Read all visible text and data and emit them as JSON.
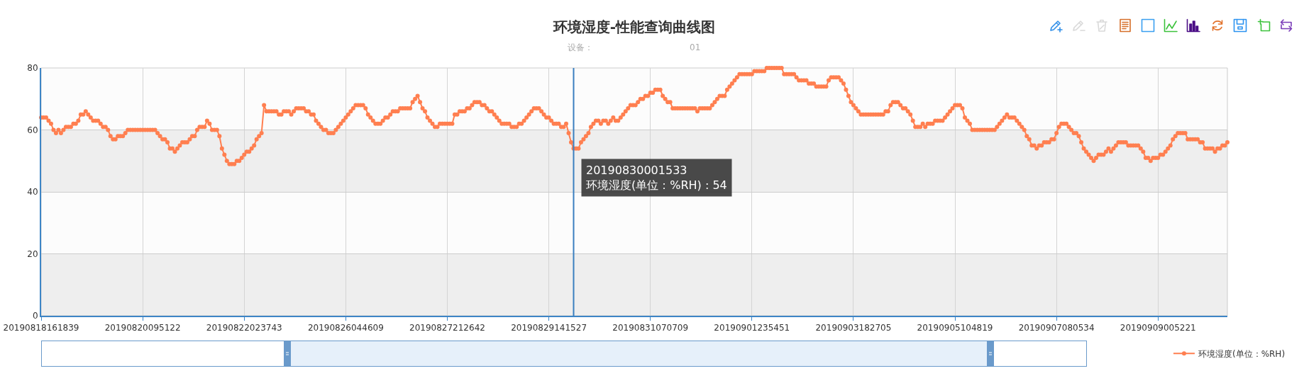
{
  "chart_data": {
    "type": "line",
    "title": "环境湿度-性能查询曲线图",
    "subtitle": "设备：",
    "categories": [
      "20190818161839",
      null,
      null,
      null,
      null,
      null,
      null,
      null,
      null,
      null,
      null,
      null,
      null,
      null,
      null,
      null,
      null,
      null,
      null,
      null,
      null,
      null,
      null,
      null,
      null,
      null,
      null,
      null,
      null,
      null,
      null,
      null,
      null,
      null,
      null,
      null,
      null,
      null,
      null,
      null,
      null,
      "20190820095122",
      null,
      null,
      null,
      null,
      null,
      null,
      null,
      null,
      null,
      null,
      null,
      null,
      null,
      null,
      null,
      null,
      null,
      null,
      null,
      null,
      null,
      null,
      null,
      null,
      null,
      null,
      null,
      null,
      null,
      null,
      null,
      null,
      null,
      null,
      null,
      null,
      null,
      null,
      null,
      null,
      "20190822023743",
      null,
      null,
      null,
      null,
      null,
      null,
      null,
      null,
      null,
      null,
      null,
      null,
      null,
      null,
      null,
      null,
      null,
      null,
      null,
      null,
      null,
      null,
      null,
      null,
      null,
      null,
      null,
      null,
      null,
      null,
      null,
      null,
      null,
      null,
      null,
      null,
      null,
      null,
      null,
      null,
      "20190826044609",
      null,
      null,
      null,
      null,
      null,
      null,
      null,
      null,
      null,
      null,
      null,
      null,
      null,
      null,
      null,
      null,
      null,
      null,
      null,
      null,
      null,
      null,
      null,
      null,
      null,
      null,
      null,
      null,
      null,
      null,
      null,
      null,
      null,
      null,
      null,
      null,
      null,
      null,
      null,
      null,
      "20190827212642",
      null,
      null,
      null,
      null,
      null,
      null,
      null,
      null,
      null,
      null,
      null,
      null,
      null,
      null,
      null,
      null,
      null,
      null,
      null,
      null,
      null,
      null,
      null,
      null,
      null,
      null,
      null,
      null,
      null,
      null,
      null,
      null,
      null,
      null,
      null,
      null,
      null,
      null,
      null,
      null,
      "20190829141527",
      null,
      null,
      null,
      null,
      null,
      null,
      null,
      null,
      null,
      null,
      null,
      null,
      null,
      null,
      null,
      null,
      null,
      null,
      null,
      null,
      null,
      null,
      null,
      null,
      null,
      null,
      null,
      null,
      null,
      null,
      null,
      null,
      null,
      null,
      null,
      null,
      null,
      null,
      null,
      null,
      "20190831070709",
      null,
      null,
      null,
      null,
      null,
      null,
      null,
      null,
      null,
      null,
      null,
      null,
      null,
      null,
      null,
      null,
      null,
      null,
      null,
      null,
      null,
      null,
      null,
      null,
      null,
      null,
      null,
      null,
      null,
      null,
      null,
      null,
      null,
      null,
      null,
      null,
      null,
      null,
      null,
      null,
      "20190901235451",
      null,
      null,
      null,
      null,
      null,
      null,
      null,
      null,
      null,
      null,
      null,
      null,
      null,
      null,
      null,
      null,
      null,
      null,
      null,
      null,
      null,
      null,
      null,
      null,
      null,
      null,
      null,
      null,
      null,
      null,
      null,
      null,
      null,
      null,
      null,
      null,
      null,
      null,
      null,
      null,
      "20190903182705",
      null,
      null,
      null,
      null,
      null,
      null,
      null,
      null,
      null,
      null,
      null,
      null,
      null,
      null,
      null,
      null,
      null,
      null,
      null,
      null,
      null,
      null,
      null,
      null,
      null,
      null,
      null,
      null,
      null,
      null,
      null,
      null,
      null,
      null,
      null,
      null,
      null,
      null,
      null,
      null,
      "20190905104819",
      null,
      null,
      null,
      null,
      null,
      null,
      null,
      null,
      null,
      null,
      null,
      null,
      null,
      null,
      null,
      null,
      null,
      null,
      null,
      null,
      null,
      null,
      null,
      null,
      null,
      null,
      null,
      null,
      null,
      null,
      null,
      null,
      null,
      null,
      null,
      null,
      null,
      null,
      null,
      null,
      "20190907080534",
      null,
      null,
      null,
      null,
      null,
      null,
      null,
      null,
      null,
      null,
      null,
      null,
      null,
      null,
      null,
      null,
      null,
      null,
      null,
      null,
      null,
      null,
      null,
      null,
      null,
      null,
      null,
      null,
      null,
      null,
      null,
      null,
      null,
      null,
      null,
      null,
      null,
      null,
      null,
      null,
      "20190909005221",
      null,
      null,
      null,
      null,
      null,
      null,
      null,
      null,
      null,
      null,
      null,
      null,
      null,
      null,
      null,
      null,
      null,
      null,
      null,
      null,
      null,
      null,
      null,
      null,
      null,
      null,
      null,
      null
    ],
    "series": [
      {
        "name": "环境湿度(单位：%RH)",
        "color": "#ff7f50",
        "values": [
          64,
          64,
          64,
          63,
          62,
          60,
          59,
          60,
          59,
          60,
          61,
          61,
          61,
          62,
          62,
          63,
          65,
          65,
          66,
          65,
          64,
          63,
          63,
          63,
          62,
          61,
          61,
          60,
          58,
          57,
          57,
          58,
          58,
          58,
          59,
          60,
          60,
          60,
          60,
          60,
          60,
          60,
          60,
          60,
          60,
          60,
          60,
          59,
          58,
          57,
          57,
          56,
          54,
          54,
          53,
          54,
          55,
          56,
          56,
          56,
          57,
          58,
          58,
          60,
          61,
          61,
          61,
          63,
          62,
          60,
          60,
          60,
          58,
          54,
          52,
          50,
          49,
          49,
          49,
          50,
          50,
          51,
          52,
          53,
          53,
          54,
          55,
          57,
          58,
          59,
          68,
          66,
          66,
          66,
          66,
          66,
          65,
          65,
          66,
          66,
          66,
          65,
          66,
          67,
          67,
          67,
          67,
          66,
          66,
          65,
          65,
          63,
          62,
          61,
          60,
          60,
          59,
          59,
          59,
          60,
          61,
          62,
          63,
          64,
          65,
          66,
          67,
          68,
          68,
          68,
          68,
          67,
          65,
          64,
          63,
          62,
          62,
          62,
          63,
          64,
          64,
          65,
          66,
          66,
          66,
          67,
          67,
          67,
          67,
          67,
          69,
          70,
          71,
          69,
          67,
          66,
          64,
          63,
          62,
          61,
          61,
          62,
          62,
          62,
          62,
          62,
          62,
          65,
          65,
          66,
          66,
          66,
          67,
          67,
          68,
          69,
          69,
          69,
          68,
          68,
          67,
          66,
          66,
          65,
          64,
          63,
          62,
          62,
          62,
          62,
          61,
          61,
          61,
          62,
          62,
          63,
          64,
          65,
          66,
          67,
          67,
          67,
          66,
          65,
          64,
          64,
          63,
          62,
          62,
          62,
          61,
          61,
          62,
          59,
          56,
          54,
          54,
          54,
          56,
          57,
          58,
          59,
          61,
          62,
          63,
          63,
          62,
          63,
          63,
          62,
          63,
          64,
          63,
          63,
          64,
          65,
          66,
          67,
          68,
          68,
          68,
          69,
          70,
          70,
          71,
          71,
          72,
          72,
          73,
          73,
          73,
          71,
          70,
          69,
          69,
          67,
          67,
          67,
          67,
          67,
          67,
          67,
          67,
          67,
          67,
          66,
          67,
          67,
          67,
          67,
          67,
          68,
          69,
          70,
          71,
          71,
          71,
          73,
          74,
          75,
          76,
          77,
          78,
          78,
          78,
          78,
          78,
          78,
          79,
          79,
          79,
          79,
          79,
          80,
          80,
          80,
          80,
          80,
          80,
          80,
          78,
          78,
          78,
          78,
          78,
          77,
          76,
          76,
          76,
          76,
          75,
          75,
          75,
          74,
          74,
          74,
          74,
          74,
          76,
          77,
          77,
          77,
          77,
          76,
          75,
          73,
          71,
          69,
          68,
          67,
          66,
          65,
          65,
          65,
          65,
          65,
          65,
          65,
          65,
          65,
          65,
          66,
          66,
          68,
          69,
          69,
          69,
          68,
          67,
          67,
          66,
          65,
          63,
          61,
          61,
          61,
          62,
          61,
          62,
          62,
          62,
          63,
          63,
          63,
          63,
          64,
          65,
          66,
          67,
          68,
          68,
          68,
          67,
          64,
          63,
          62,
          60,
          60,
          60,
          60,
          60,
          60,
          60,
          60,
          60,
          60,
          61,
          62,
          63,
          64,
          65,
          64,
          64,
          64,
          63,
          62,
          61,
          60,
          58,
          57,
          55,
          55,
          54,
          55,
          55,
          56,
          56,
          56,
          57,
          57,
          59,
          61,
          62,
          62,
          62,
          61,
          60,
          59,
          59,
          58,
          56,
          54,
          53,
          52,
          51,
          50,
          51,
          52,
          52,
          52,
          53,
          54,
          53,
          54,
          55,
          56,
          56,
          56,
          56,
          55,
          55,
          55,
          55,
          55,
          54,
          53,
          51,
          51,
          50,
          51,
          51,
          51,
          52,
          52,
          53,
          54,
          55,
          57,
          58,
          59,
          59,
          59,
          59,
          57,
          57,
          57,
          57,
          57,
          56,
          56,
          54,
          54,
          54,
          54,
          53,
          54,
          54,
          55,
          55,
          56
        ]
      }
    ],
    "ylim": [
      0,
      80
    ],
    "yticks": [
      0,
      20,
      40,
      60,
      80
    ],
    "grid": true,
    "legend": "bottom right",
    "marker": "circle",
    "line_style": "solid",
    "annotations": [
      "01",
      "20190830001533\n环境湿度(单位：%RH) : 54"
    ]
  }
}
